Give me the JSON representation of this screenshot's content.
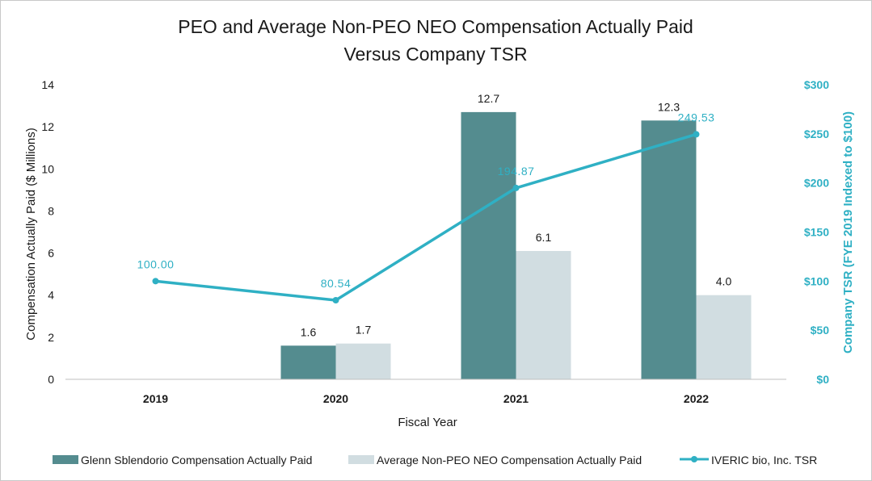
{
  "chart_data": {
    "type": "bar",
    "title_lines": [
      "PEO and Average Non-PEO NEO Compensation Actually Paid",
      "Versus Company TSR"
    ],
    "xlabel": "Fiscal Year",
    "ylabel": "Compensation Actually Paid ($ Millions)",
    "y2label": "Company TSR (FYE 2019 Indexed to $100)",
    "categories": [
      "2019",
      "2020",
      "2021",
      "2022"
    ],
    "ylim": [
      0,
      14
    ],
    "yticks": [
      "0",
      "2",
      "4",
      "6",
      "8",
      "10",
      "12",
      "14"
    ],
    "y2lim": [
      0,
      300
    ],
    "y2ticks": [
      "$0",
      "$50",
      "$100",
      "$150",
      "$200",
      "$250",
      "$300"
    ],
    "series": [
      {
        "name": "Glenn Sblendorio Compensation Actually Paid",
        "type": "bar",
        "axis": "left",
        "color": "#548c8f",
        "values": [
          null,
          1.6,
          12.7,
          12.3
        ],
        "labels": [
          "",
          "1.6",
          "12.7",
          "12.3"
        ]
      },
      {
        "name": "Average Non-PEO NEO Compensation Actually Paid",
        "type": "bar",
        "axis": "left",
        "color": "#d1dde1",
        "values": [
          null,
          1.7,
          6.1,
          4.0
        ],
        "labels": [
          "",
          "1.7",
          "6.1",
          "4.0"
        ]
      },
      {
        "name": "IVERIC bio, Inc. TSR",
        "type": "line",
        "axis": "right",
        "color": "#2fb0c4",
        "values": [
          100.0,
          80.54,
          194.87,
          249.53
        ],
        "labels": [
          "100.00",
          "80.54",
          "194.87",
          "249.53"
        ]
      }
    ],
    "grid": false,
    "legend_position": "bottom"
  }
}
